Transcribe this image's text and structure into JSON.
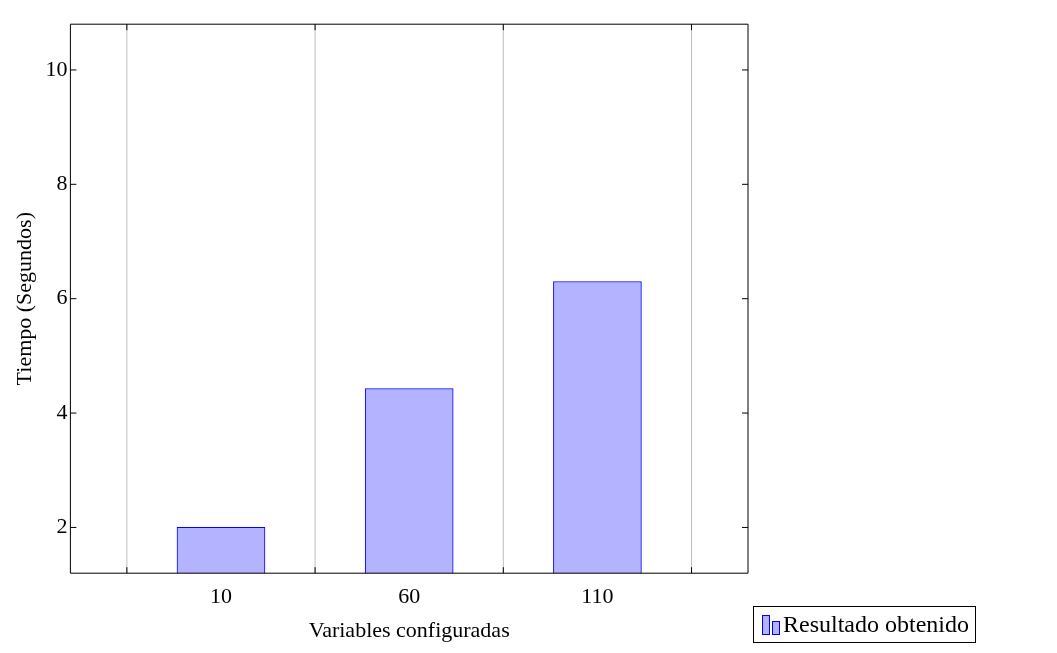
{
  "chart_data": {
    "type": "bar",
    "xlabel": "Variables configuradas",
    "ylabel": "Tiempo (Segundos)",
    "categories": [
      "10",
      "60",
      "110"
    ],
    "series": [
      {
        "name": "Resultado obtenido",
        "color": "#b3b3ff",
        "values": [
          2.0,
          4.43,
          6.3
        ]
      }
    ],
    "ylim": [
      1.2,
      10.8
    ],
    "yticks": [
      2,
      4,
      6,
      8,
      10
    ],
    "grid": "x",
    "legend": "bottom right"
  }
}
